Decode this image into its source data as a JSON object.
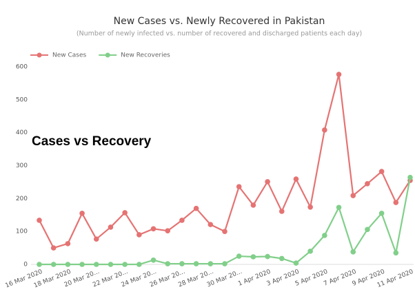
{
  "chart_data": {
    "type": "line",
    "title": "New Cases vs. Newly Recovered in Pakistan",
    "subtitle": "(Number of newly infected vs. number of recovered and discharged patients each day)",
    "annotation": "Cases vs Recovery",
    "categories": [
      "16 Mar 2020",
      null,
      "18 Mar 2020",
      null,
      "20 Mar 20...",
      null,
      "22 Mar 20...",
      null,
      "24 Mar 20...",
      null,
      "26 Mar 20...",
      null,
      "28 Mar 20...",
      null,
      "30 Mar 20...",
      null,
      "1 Apr 2020",
      null,
      "3 Apr 2020",
      null,
      "5 Apr 2020",
      null,
      "7 Apr 2020",
      null,
      "9 Apr 2020",
      null,
      "11 Apr 2020"
    ],
    "series": [
      {
        "name": "New Cases",
        "color": "#e57373",
        "values": [
          134,
          50,
          63,
          155,
          77,
          113,
          157,
          90,
          108,
          102,
          134,
          170,
          121,
          100,
          236,
          180,
          251,
          161,
          259,
          174,
          408,
          577,
          209,
          245,
          282,
          188,
          255
        ]
      },
      {
        "name": "New Recoveries",
        "color": "#81cf8a",
        "values": [
          0,
          0,
          0,
          0,
          0,
          0,
          0,
          0,
          13,
          2,
          2,
          2,
          2,
          2,
          25,
          23,
          24,
          18,
          4,
          40,
          88,
          173,
          38,
          106,
          155,
          35,
          264
        ]
      }
    ],
    "ylim": [
      0,
      600
    ],
    "yticks": [
      0,
      100,
      200,
      300,
      400,
      500,
      600
    ],
    "grid": false,
    "legend": "top-left"
  }
}
